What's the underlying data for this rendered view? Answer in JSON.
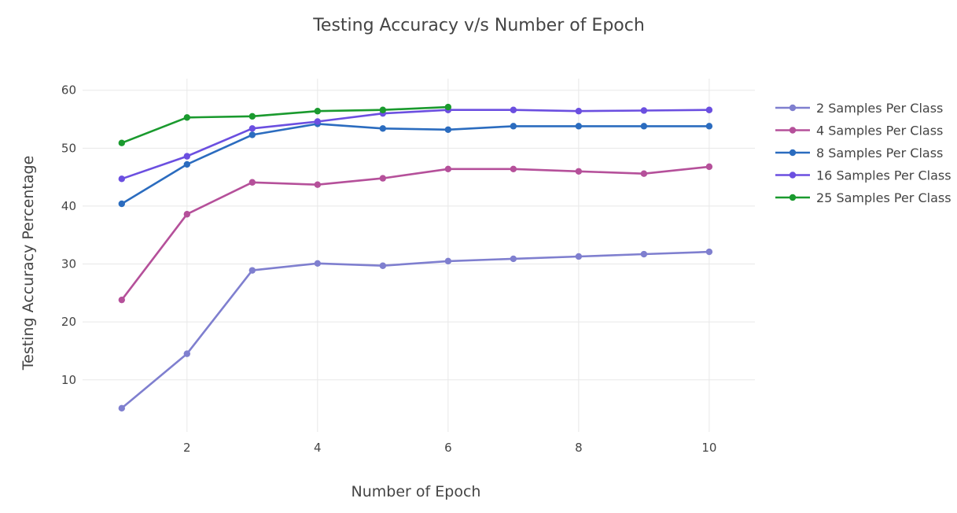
{
  "chart_data": {
    "type": "line",
    "title": "Testing Accuracy v/s Number of Epoch",
    "xlabel": "Number of Epoch",
    "ylabel": "Testing Accuracy Percentage",
    "xlim": [
      0.4,
      10.7
    ],
    "ylim": [
      1,
      62
    ],
    "xticks": [
      2,
      4,
      6,
      8,
      10
    ],
    "yticks": [
      10,
      20,
      30,
      40,
      50,
      60
    ],
    "grid": true,
    "legend_position": "top-right",
    "series": [
      {
        "name": "2 Samples Per Class",
        "color": "#7f7fcf",
        "x": [
          1,
          2,
          3,
          4,
          5,
          6,
          7,
          8,
          9,
          10
        ],
        "y": [
          5.1,
          14.5,
          28.9,
          30.1,
          29.7,
          30.5,
          30.9,
          31.3,
          31.7,
          32.1
        ]
      },
      {
        "name": "4 Samples Per Class",
        "color": "#b5509a",
        "x": [
          1,
          2,
          3,
          4,
          5,
          6,
          7,
          8,
          9,
          10
        ],
        "y": [
          23.8,
          38.6,
          44.1,
          43.7,
          44.8,
          46.4,
          46.4,
          46.0,
          45.6,
          46.8
        ]
      },
      {
        "name": "8 Samples Per Class",
        "color": "#2b6cbf",
        "x": [
          1,
          2,
          3,
          4,
          5,
          6,
          7,
          8,
          9,
          10
        ],
        "y": [
          40.4,
          47.2,
          52.3,
          54.2,
          53.4,
          53.2,
          53.8,
          53.8,
          53.8,
          53.8
        ]
      },
      {
        "name": "16 Samples Per Class",
        "color": "#6b4fe0",
        "x": [
          1,
          2,
          3,
          4,
          5,
          6,
          7,
          8,
          9,
          10
        ],
        "y": [
          44.7,
          48.6,
          53.4,
          54.6,
          56.0,
          56.6,
          56.6,
          56.4,
          56.5,
          56.6
        ]
      },
      {
        "name": "25 Samples Per Class",
        "color": "#1a9a2e",
        "x": [
          1,
          2,
          3,
          4,
          5,
          6
        ],
        "y": [
          50.9,
          55.3,
          55.5,
          56.4,
          56.6,
          57.1
        ]
      }
    ]
  }
}
